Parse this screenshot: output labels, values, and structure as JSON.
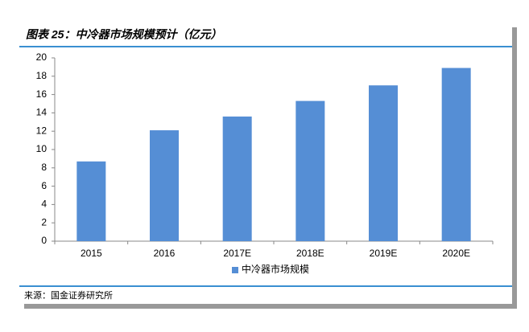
{
  "chart_data": {
    "type": "bar",
    "title": "图表 25：中冷器市场规模预计（亿元）",
    "categories": [
      "2015",
      "2016",
      "2017E",
      "2018E",
      "2019E",
      "2020E"
    ],
    "series": [
      {
        "name": "中冷器市场规模",
        "color": "#558ed5",
        "values": [
          8.7,
          12.1,
          13.6,
          15.3,
          17.0,
          18.9
        ]
      }
    ],
    "ylim": [
      0,
      20
    ],
    "yticks": [
      0,
      2,
      4,
      6,
      8,
      10,
      12,
      14,
      16,
      18,
      20
    ],
    "grid": false,
    "legend": "bottom",
    "source": "来源：国金证券研究所"
  }
}
